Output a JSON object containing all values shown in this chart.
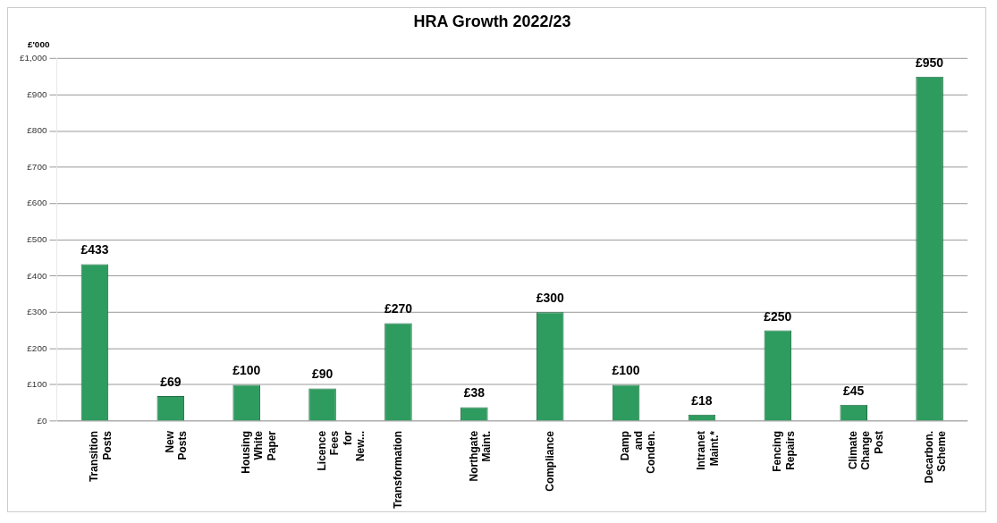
{
  "chart_data": {
    "type": "bar",
    "title": "HRA Growth 2022/23",
    "ylabel": "£'000",
    "categories": [
      "Transition Posts",
      "New Posts",
      "Housing White Paper",
      "Licence Fees for New...",
      "Transformation",
      "Northgate Maint.",
      "Compliance",
      "Damp and Conden.",
      "Intranet Maint.*",
      "Fencing Repairs",
      "Climate Change Post",
      "Decarbon. Scheme"
    ],
    "values": [
      433,
      69,
      100,
      90,
      270,
      38,
      300,
      100,
      18,
      250,
      45,
      950
    ],
    "value_labels": [
      "£433",
      "£69",
      "£100",
      "£90",
      "£270",
      "£38",
      "£300",
      "£100",
      "£18",
      "£250",
      "£45",
      "£950"
    ],
    "color": "#2e9b5f",
    "ylim": [
      0,
      1000
    ],
    "yticks": [
      {
        "value": 0,
        "label": "£0"
      },
      {
        "value": 100,
        "label": "£100"
      },
      {
        "value": 200,
        "label": "£200"
      },
      {
        "value": 300,
        "label": "£300"
      },
      {
        "value": 400,
        "label": "£400"
      },
      {
        "value": 500,
        "label": "£500"
      },
      {
        "value": 600,
        "label": "£600"
      },
      {
        "value": 700,
        "label": "£700"
      },
      {
        "value": 800,
        "label": "£800"
      },
      {
        "value": 900,
        "label": "£900"
      },
      {
        "value": 1000,
        "label": "£1,000"
      }
    ],
    "grid": "y",
    "legend": false
  }
}
